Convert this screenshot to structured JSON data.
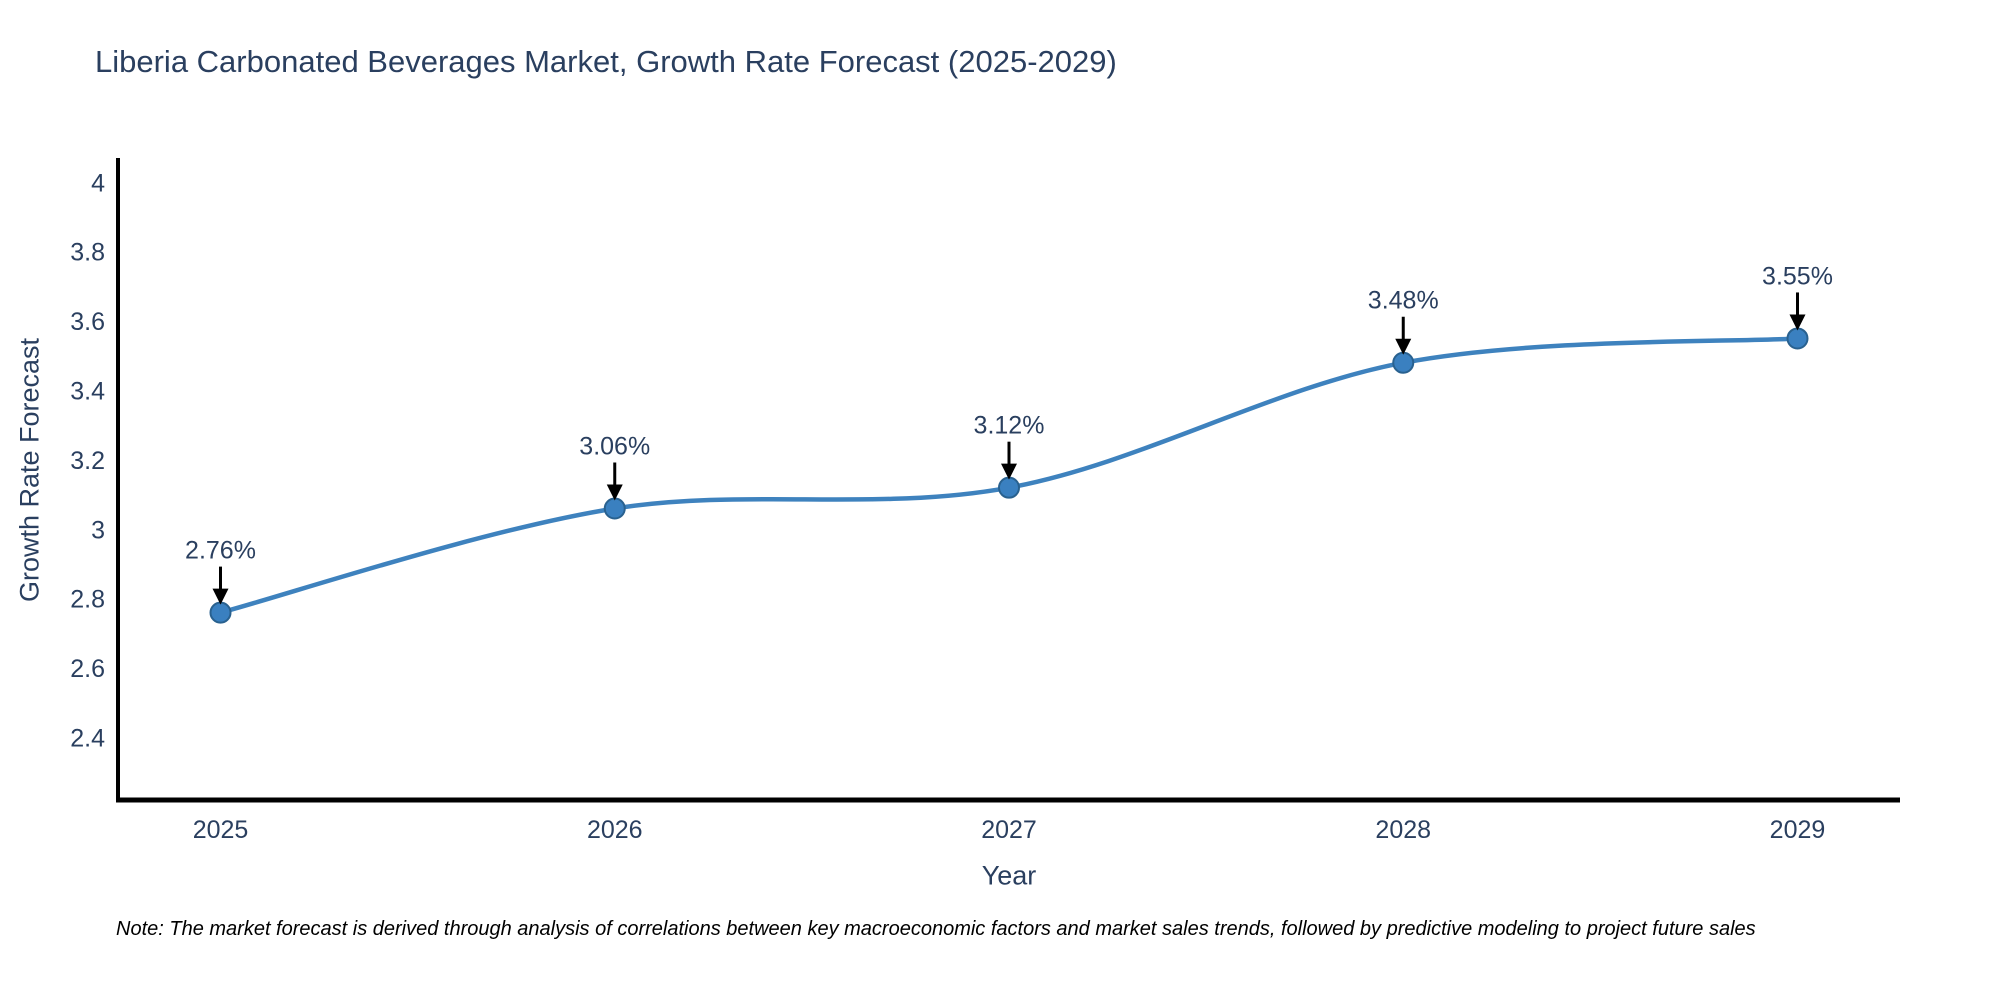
{
  "page": {
    "background": "#ffffff"
  },
  "header": {
    "title": "Liberia Carbonated Beverages Market, Growth Rate Forecast (2025-2029)"
  },
  "footer": {
    "note": "Note: The market forecast is derived through analysis of correlations between key macroeconomic factors and market sales trends, followed by predictive modeling to project future sales"
  },
  "chart_data": {
    "type": "line",
    "title": "Liberia Carbonated Beverages Market, Growth Rate Forecast (2025-2029)",
    "xlabel": "Year",
    "ylabel": "Growth Rate Forecast",
    "x": [
      2025,
      2026,
      2027,
      2028,
      2029
    ],
    "values": [
      2.76,
      3.06,
      3.12,
      3.48,
      3.55
    ],
    "point_labels": [
      "2.76%",
      "3.06%",
      "3.12%",
      "3.48%",
      "3.55%"
    ],
    "line_shape": "spline",
    "grid": false,
    "legend_position": "none",
    "xlim": [
      2024.74,
      2029.26
    ],
    "ylim": [
      2.22,
      4.07
    ],
    "xtick_labels": [
      "2025",
      "2026",
      "2027",
      "2028",
      "2029"
    ],
    "ytick_values": [
      4,
      3.8,
      3.6,
      3.4,
      3.2,
      3,
      2.8,
      2.6,
      2.4
    ],
    "ytick_labels": [
      "4",
      "3.8",
      "3.6",
      "3.4",
      "3.2",
      "3",
      "2.8",
      "2.6",
      "2.4"
    ],
    "colors": {
      "line": "#3e82be",
      "marker_fill": "#3a80c0",
      "marker_edge": "#29618f",
      "axis_line": "#000000",
      "text": "#2a3f5f",
      "annotation_arrow": "#000000",
      "note_text": "#000000",
      "background": "#ffffff"
    }
  }
}
